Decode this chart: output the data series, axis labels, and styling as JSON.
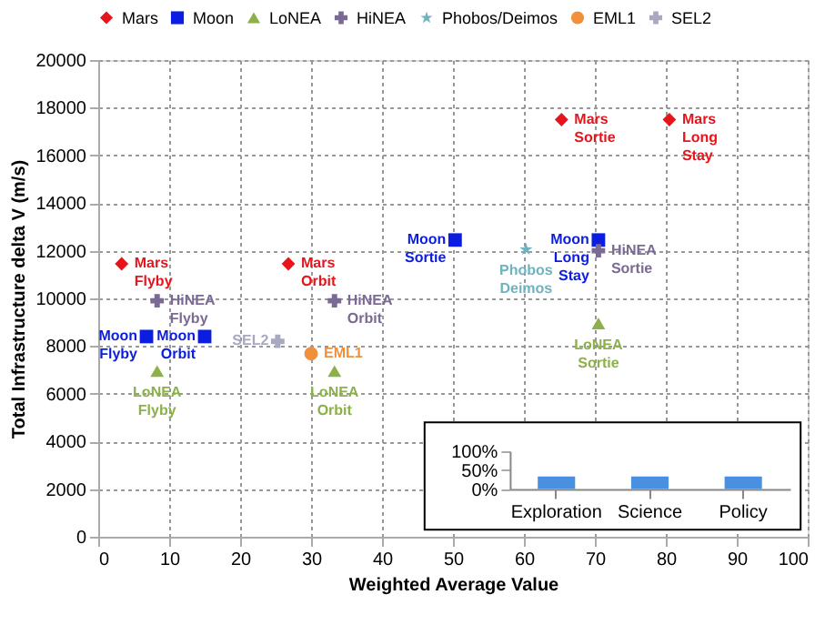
{
  "chart_data": [
    {
      "type": "scatter",
      "xlabel": "Weighted Average Value",
      "ylabel": "Total Infrastructure delta V (m/s)",
      "xlim": [
        0,
        100
      ],
      "xticks": [
        0,
        10,
        20,
        30,
        40,
        50,
        60,
        70,
        80,
        90,
        100
      ],
      "ylim": [
        0,
        20000
      ],
      "yticks": [
        0,
        2000,
        4000,
        6000,
        8000,
        10000,
        12000,
        14000,
        16000,
        18000,
        20000
      ],
      "grid": true,
      "legend": "top",
      "series": [
        {
          "name": "Mars",
          "color": "#e8141c",
          "marker": "diamond",
          "x": [
            3.3,
            26.8,
            65.3,
            80.5
          ],
          "values": [
            11450,
            11450,
            17500,
            17500
          ]
        },
        {
          "name": "Moon",
          "color": "#0a1de0",
          "marker": "square",
          "x": [
            6.8,
            15,
            50.3,
            70.5
          ],
          "values": [
            8400,
            8400,
            12450,
            12450
          ]
        },
        {
          "name": "LoNEA",
          "color": "#8db04a",
          "marker": "triangle",
          "x": [
            8.3,
            33.3,
            70.5
          ],
          "values": [
            6950,
            6950,
            8950
          ]
        },
        {
          "name": "HiNEA",
          "color": "#7a6a94",
          "marker": "cross",
          "x": [
            8.3,
            33.3,
            70.5
          ],
          "values": [
            9900,
            9900,
            12000
          ]
        },
        {
          "name": "Phobos/Deimos",
          "color": "#6fb3c0",
          "marker": "star",
          "x": [
            60.3
          ],
          "values": [
            12050
          ]
        },
        {
          "name": "EML1",
          "color": "#f0903a",
          "marker": "circle",
          "x": [
            30
          ],
          "values": [
            7680
          ]
        },
        {
          "name": "SEL2",
          "color": "#a8a8c0",
          "marker": "cross",
          "x": [
            25.3
          ],
          "values": [
            8200
          ]
        }
      ],
      "annotations": [
        {
          "text": "Mars Flyby",
          "x": 3.3,
          "y": 11450
        },
        {
          "text": "Mars Orbit",
          "x": 26.8,
          "y": 11450
        },
        {
          "text": "Mars Sortie",
          "x": 65.3,
          "y": 17500
        },
        {
          "text": "Mars Long Stay",
          "x": 80.5,
          "y": 17500
        },
        {
          "text": "Moon Flyby",
          "x": 6.8,
          "y": 8400
        },
        {
          "text": "Moon Orbit",
          "x": 15,
          "y": 8400
        },
        {
          "text": "Moon Sortie",
          "x": 50.3,
          "y": 12450
        },
        {
          "text": "Moon Long Stay",
          "x": 70.5,
          "y": 12450
        },
        {
          "text": "LoNEA Flyby",
          "x": 8.3,
          "y": 6950
        },
        {
          "text": "LoNEA Orbit",
          "x": 33.3,
          "y": 6950
        },
        {
          "text": "LoNEA Sortie",
          "x": 70.5,
          "y": 8950
        },
        {
          "text": "HiNEA Flyby",
          "x": 8.3,
          "y": 9900
        },
        {
          "text": "HiNEA Orbit",
          "x": 33.3,
          "y": 9900
        },
        {
          "text": "HiNEA Sortie",
          "x": 70.5,
          "y": 12000
        },
        {
          "text": "Phobos Deimos",
          "x": 60.3,
          "y": 12050
        },
        {
          "text": "EML1",
          "x": 30,
          "y": 7680
        },
        {
          "text": "SEL2",
          "x": 25.3,
          "y": 8200
        }
      ]
    },
    {
      "type": "bar",
      "categories": [
        "Exploration",
        "Science",
        "Policy"
      ],
      "values": [
        33,
        33,
        33
      ],
      "color": "#4a90e0",
      "ylim": [
        0,
        100
      ],
      "yticks": [
        {
          "value": 0,
          "label": "0%"
        },
        {
          "value": 50,
          "label": "50%"
        },
        {
          "value": 100,
          "label": "100%"
        }
      ],
      "tick_labels": true
    }
  ]
}
